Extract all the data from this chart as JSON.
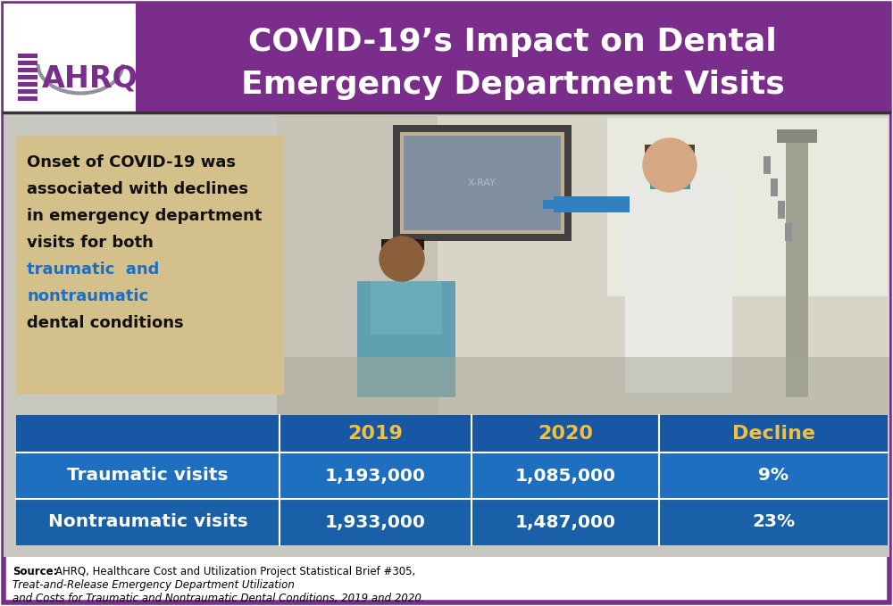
{
  "title_line1": "COVID-19’s Impact on Dental",
  "title_line2": "Emergency Department Visits",
  "title_bg_color": "#7B2D8B",
  "title_text_color": "#FFFFFF",
  "ahrq_purple": "#7B2D8B",
  "outer_border_color": "#7B2D8B",
  "text_box_bg": "#D4C08A",
  "text_box_text_dark": "#111111",
  "text_box_text_blue": "#1B6FC8",
  "table_header_bg": "#1857A4",
  "table_row1_bg": "#1E6FBF",
  "table_row2_bg": "#1A60A8",
  "table_header_text_color": "#F2C040",
  "table_data_text_color": "#FFFFFF",
  "table_label_text_color": "#FFFFFF",
  "photo_bg": "#C8C8C0",
  "photo_light": "#E8E4D8",
  "photo_dark": "#707060",
  "table_headers": [
    "",
    "2019",
    "2020",
    "Decline"
  ],
  "table_rows": [
    [
      "Traumatic visits",
      "1,193,000",
      "1,085,000",
      "9%"
    ],
    [
      "Nontraumatic visits",
      "1,933,000",
      "1,487,000",
      "23%"
    ]
  ],
  "figsize": [
    10.0,
    6.79
  ],
  "dpi": 100
}
